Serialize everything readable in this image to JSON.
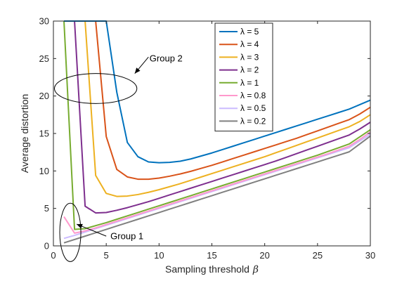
{
  "chart_data": {
    "type": "line",
    "xlabel": "Sampling threshold",
    "xlabel_symbol": "β",
    "ylabel": "Average distortion",
    "xlim": [
      0,
      30
    ],
    "ylim": [
      0,
      30
    ],
    "xticks": [
      0,
      5,
      10,
      15,
      20,
      25,
      30
    ],
    "yticks": [
      0,
      5,
      10,
      15,
      20,
      25,
      30
    ],
    "grid": false,
    "legend_position": "top-right",
    "series": [
      {
        "name": "λ = 5",
        "color": "#0072BD",
        "x": [
          1,
          2,
          3,
          4,
          5,
          6,
          7,
          8,
          9,
          10,
          11,
          12,
          13,
          14,
          15,
          16,
          17,
          18,
          19,
          20,
          21,
          22,
          23,
          24,
          25,
          26,
          27,
          28,
          29,
          30
        ],
        "y": [
          30,
          30,
          30,
          30,
          30,
          20.5,
          13.8,
          11.9,
          11.2,
          11.1,
          11.15,
          11.3,
          11.6,
          12.0,
          12.4,
          12.85,
          13.3,
          13.75,
          14.2,
          14.65,
          15.1,
          15.55,
          16.0,
          16.45,
          16.9,
          17.35,
          17.8,
          18.25,
          18.85,
          19.45
        ]
      },
      {
        "name": "λ = 4",
        "color": "#D95319",
        "x": [
          1,
          2,
          3,
          4,
          5,
          6,
          7,
          8,
          9,
          10,
          11,
          12,
          13,
          14,
          15,
          16,
          17,
          18,
          19,
          20,
          21,
          22,
          23,
          24,
          25,
          26,
          27,
          28,
          29,
          30
        ],
        "y": [
          30,
          30,
          30,
          30,
          14.6,
          10.2,
          9.2,
          8.9,
          8.9,
          9.05,
          9.3,
          9.6,
          9.95,
          10.35,
          10.75,
          11.2,
          11.65,
          12.1,
          12.55,
          13.0,
          13.45,
          13.9,
          14.35,
          14.85,
          15.35,
          15.85,
          16.35,
          16.85,
          17.6,
          18.5
        ]
      },
      {
        "name": "λ = 3",
        "color": "#EDB120",
        "x": [
          1,
          2,
          3,
          4,
          5,
          6,
          7,
          8,
          9,
          10,
          11,
          12,
          13,
          14,
          15,
          16,
          17,
          18,
          19,
          20,
          21,
          22,
          23,
          24,
          25,
          26,
          27,
          28,
          29,
          30
        ],
        "y": [
          30,
          30,
          30,
          9.4,
          7.0,
          6.6,
          6.65,
          6.85,
          7.15,
          7.5,
          7.9,
          8.3,
          8.75,
          9.2,
          9.65,
          10.1,
          10.55,
          11.0,
          11.45,
          11.9,
          12.4,
          12.9,
          13.4,
          13.9,
          14.4,
          14.9,
          15.4,
          15.9,
          16.6,
          17.5
        ]
      },
      {
        "name": "λ = 2",
        "color": "#7E2F8E",
        "x": [
          1,
          2,
          3,
          4,
          5,
          6,
          7,
          8,
          9,
          10,
          11,
          12,
          13,
          14,
          15,
          16,
          17,
          18,
          19,
          20,
          21,
          22,
          23,
          24,
          25,
          26,
          27,
          28,
          29,
          30
        ],
        "y": [
          30,
          30,
          5.3,
          4.4,
          4.45,
          4.75,
          5.1,
          5.5,
          5.9,
          6.35,
          6.8,
          7.25,
          7.7,
          8.15,
          8.6,
          9.05,
          9.5,
          9.95,
          10.4,
          10.85,
          11.3,
          11.8,
          12.3,
          12.8,
          13.3,
          13.8,
          14.3,
          14.8,
          15.6,
          16.5
        ]
      },
      {
        "name": "λ = 1",
        "color": "#77AC30",
        "x": [
          1,
          2,
          3,
          4,
          5,
          6,
          7,
          8,
          9,
          10,
          11,
          12,
          13,
          14,
          15,
          16,
          17,
          18,
          19,
          20,
          21,
          22,
          23,
          24,
          25,
          26,
          27,
          28,
          29,
          30
        ],
        "y": [
          30,
          2.2,
          2.3,
          2.7,
          3.1,
          3.55,
          4.0,
          4.45,
          4.9,
          5.35,
          5.8,
          6.25,
          6.7,
          7.15,
          7.6,
          8.05,
          8.5,
          8.95,
          9.4,
          9.85,
          10.3,
          10.75,
          11.2,
          11.65,
          12.1,
          12.6,
          13.1,
          13.6,
          14.55,
          15.5
        ]
      },
      {
        "name": "λ = 0.8",
        "color": "#FF99CC",
        "x": [
          1,
          2,
          3,
          4,
          5,
          6,
          7,
          8,
          9,
          10,
          11,
          12,
          13,
          14,
          15,
          16,
          17,
          18,
          19,
          20,
          21,
          22,
          23,
          24,
          25,
          26,
          27,
          28,
          29,
          30
        ],
        "y": [
          3.9,
          1.7,
          2.0,
          2.4,
          2.85,
          3.3,
          3.75,
          4.2,
          4.65,
          5.1,
          5.55,
          6.0,
          6.45,
          6.9,
          7.35,
          7.8,
          8.25,
          8.7,
          9.15,
          9.6,
          10.05,
          10.5,
          10.95,
          11.4,
          11.85,
          12.3,
          12.8,
          13.3,
          14.2,
          15.2
        ]
      },
      {
        "name": "λ = 0.5",
        "color": "#CCBBFF",
        "x": [
          1,
          2,
          3,
          4,
          5,
          6,
          7,
          8,
          9,
          10,
          11,
          12,
          13,
          14,
          15,
          16,
          17,
          18,
          19,
          20,
          21,
          22,
          23,
          24,
          25,
          26,
          27,
          28,
          29,
          30
        ],
        "y": [
          1.0,
          1.4,
          1.85,
          2.3,
          2.75,
          3.2,
          3.65,
          4.1,
          4.55,
          5.0,
          5.45,
          5.9,
          6.35,
          6.8,
          7.25,
          7.7,
          8.15,
          8.6,
          9.05,
          9.5,
          9.95,
          10.4,
          10.85,
          11.3,
          11.75,
          12.2,
          12.65,
          13.1,
          14.0,
          14.9
        ]
      },
      {
        "name": "λ = 0.2",
        "color": "#808080",
        "x": [
          1,
          2,
          3,
          4,
          5,
          6,
          7,
          8,
          9,
          10,
          11,
          12,
          13,
          14,
          15,
          16,
          17,
          18,
          19,
          20,
          21,
          22,
          23,
          24,
          25,
          26,
          27,
          28,
          29,
          30
        ],
        "y": [
          0.4,
          0.85,
          1.3,
          1.75,
          2.2,
          2.65,
          3.1,
          3.55,
          4.0,
          4.45,
          4.9,
          5.35,
          5.8,
          6.25,
          6.7,
          7.15,
          7.6,
          8.05,
          8.5,
          8.95,
          9.4,
          9.85,
          10.3,
          10.75,
          11.2,
          11.65,
          12.1,
          12.55,
          13.6,
          14.65
        ]
      }
    ],
    "annotations": [
      {
        "label": "Group 2",
        "ellipse_center": [
          4.0,
          21.0
        ],
        "ellipse_radii": [
          3.9,
          2.0
        ],
        "arrow_from": [
          9.0,
          25.2
        ],
        "arrow_to": [
          7.7,
          23.0
        ],
        "text_at": [
          9.1,
          24.6
        ]
      },
      {
        "label": "Group 1",
        "ellipse_center": [
          1.6,
          1.8
        ],
        "ellipse_radii": [
          1.0,
          3.9
        ],
        "arrow_from": [
          5.0,
          1.3
        ],
        "arrow_to": [
          2.2,
          2.9
        ],
        "text_at": [
          5.4,
          0.9
        ]
      }
    ]
  }
}
